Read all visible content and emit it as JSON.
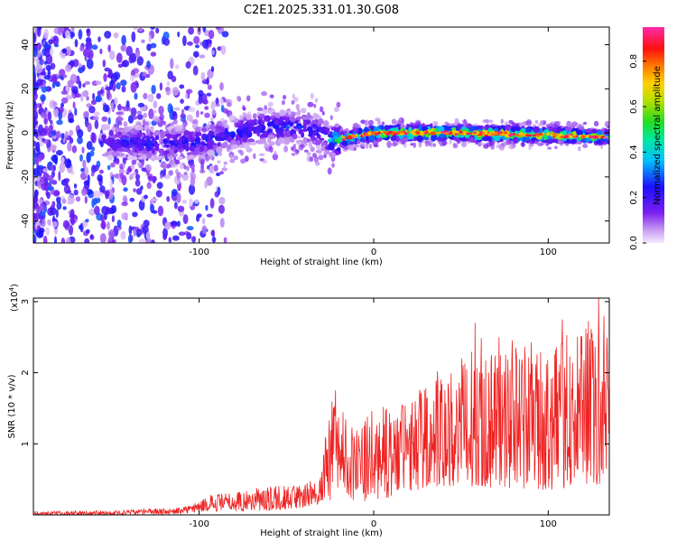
{
  "figure": {
    "title": "C2E1.2025.331.01.30.G08"
  },
  "chart_data": [
    {
      "type": "heatmap",
      "title": "C2E1.2025.331.01.30.G08",
      "xlabel": "Height of straight line (km)",
      "ylabel": "Frequency (Hz)",
      "xlim": [
        -195,
        135
      ],
      "ylim": [
        -50,
        48
      ],
      "x_ticks": [
        -100,
        0,
        100
      ],
      "y_ticks": [
        -40,
        -20,
        0,
        20,
        40
      ],
      "colorbar": {
        "label": "Normalized spectral amplitude",
        "range": [
          0.0,
          0.95
        ],
        "ticks": [
          "0.0",
          "0.2",
          "0.4",
          "0.6",
          "0.8"
        ],
        "tick_values": [
          0.0,
          0.2,
          0.4,
          0.6,
          0.8
        ]
      },
      "ridge": [
        {
          "x": -150,
          "f": -4,
          "amp": 0.25
        },
        {
          "x": -120,
          "f": -5,
          "amp": 0.28
        },
        {
          "x": -100,
          "f": -4,
          "amp": 0.3
        },
        {
          "x": -80,
          "f": 0,
          "amp": 0.3
        },
        {
          "x": -60,
          "f": 3,
          "amp": 0.3
        },
        {
          "x": -40,
          "f": 2,
          "amp": 0.3
        },
        {
          "x": -30,
          "f": 0,
          "amp": 0.3
        },
        {
          "x": -25,
          "f": -4,
          "amp": 0.4
        },
        {
          "x": -20,
          "f": -3,
          "amp": 0.65
        },
        {
          "x": 0,
          "f": 0,
          "amp": 0.9
        },
        {
          "x": 50,
          "f": 0,
          "amp": 0.9
        },
        {
          "x": 100,
          "f": -1,
          "amp": 0.9
        },
        {
          "x": 135,
          "f": -2,
          "amp": 0.7
        }
      ]
    },
    {
      "type": "line",
      "xlabel": "Height of straight line (km)",
      "ylabel": "SNR (10 * v/v)",
      "y_multiplier_label": "(x10",
      "y_multiplier_exp": "4",
      "y_multiplier_close": ")",
      "xlim": [
        -195,
        135
      ],
      "ylim": [
        0,
        3.05
      ],
      "x_ticks": [
        -100,
        0,
        100
      ],
      "y_ticks": [
        1,
        2,
        3
      ],
      "series": [
        {
          "name": "SNR",
          "color": "#ee2222",
          "envelope_x": [
            -195,
            -150,
            -110,
            -100,
            -90,
            -60,
            -40,
            -30,
            -25,
            -15,
            -10,
            0,
            20,
            40,
            60,
            80,
            100,
            120,
            135
          ],
          "envelope_max": [
            0.05,
            0.06,
            0.1,
            0.2,
            0.3,
            0.38,
            0.42,
            0.6,
            1.7,
            1.4,
            1.2,
            1.5,
            1.6,
            2.0,
            2.4,
            2.4,
            2.3,
            2.6,
            2.6
          ],
          "envelope_min": [
            0.0,
            0.0,
            0.01,
            0.05,
            0.05,
            0.06,
            0.1,
            0.15,
            0.2,
            0.3,
            0.15,
            0.2,
            0.3,
            0.4,
            0.4,
            0.35,
            0.35,
            0.4,
            0.4
          ],
          "peaks": [
            [
              -22,
              1.75
            ],
            [
              58,
              2.7
            ],
            [
              108,
              2.75
            ],
            [
              129,
              3.05
            ],
            [
              132,
              2.8
            ]
          ]
        }
      ]
    }
  ],
  "colors": {
    "line": "#ee2222",
    "axis": "#000000"
  }
}
